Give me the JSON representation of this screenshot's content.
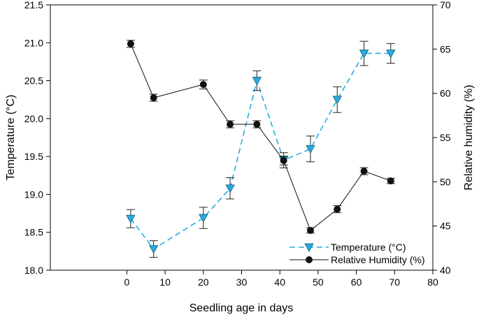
{
  "chart_data": {
    "type": "line",
    "title": "",
    "xlabel": "Seedling age in days",
    "ylabel_left": "Temperature (°C)",
    "ylabel_right": "Relative humidity (%)",
    "xlim": [
      -20,
      80
    ],
    "ylim_left": [
      18.0,
      21.5
    ],
    "ylim_right": [
      40,
      70
    ],
    "x_ticks": [
      "0",
      "10",
      "20",
      "30",
      "40",
      "50",
      "60",
      "70",
      "80"
    ],
    "y_left_ticks": [
      "18.0",
      "18.5",
      "19.0",
      "19.5",
      "20.0",
      "20.5",
      "21.0",
      "21.5"
    ],
    "y_right_ticks": [
      "40",
      "45",
      "50",
      "55",
      "60",
      "65",
      "70"
    ],
    "grid": false,
    "legend_position": "bottom-right",
    "series": [
      {
        "name": "Temperature (°C)",
        "axis": "left",
        "style": "dashed",
        "marker": "triangle-down",
        "color": "#29ABE2",
        "x": [
          1,
          7,
          20,
          27,
          34,
          41,
          48,
          55,
          62,
          69
        ],
        "y": [
          18.68,
          18.28,
          18.69,
          19.08,
          20.5,
          19.45,
          19.6,
          20.25,
          20.86,
          20.86
        ],
        "err": [
          0.12,
          0.11,
          0.14,
          0.14,
          0.13,
          0.1,
          0.17,
          0.17,
          0.16,
          0.13
        ]
      },
      {
        "name": "Relative Humidity (%)",
        "axis": "right",
        "style": "solid",
        "marker": "circle",
        "color": "#111111",
        "x": [
          1,
          7,
          20,
          27,
          34,
          41,
          48,
          55,
          62,
          69
        ],
        "y": [
          65.6,
          59.5,
          61.0,
          56.5,
          56.5,
          52.4,
          44.5,
          46.9,
          51.2,
          50.1
        ],
        "err": [
          0.4,
          0.4,
          0.5,
          0.4,
          0.4,
          0.5,
          0.3,
          0.4,
          0.4,
          0.3
        ]
      }
    ]
  }
}
